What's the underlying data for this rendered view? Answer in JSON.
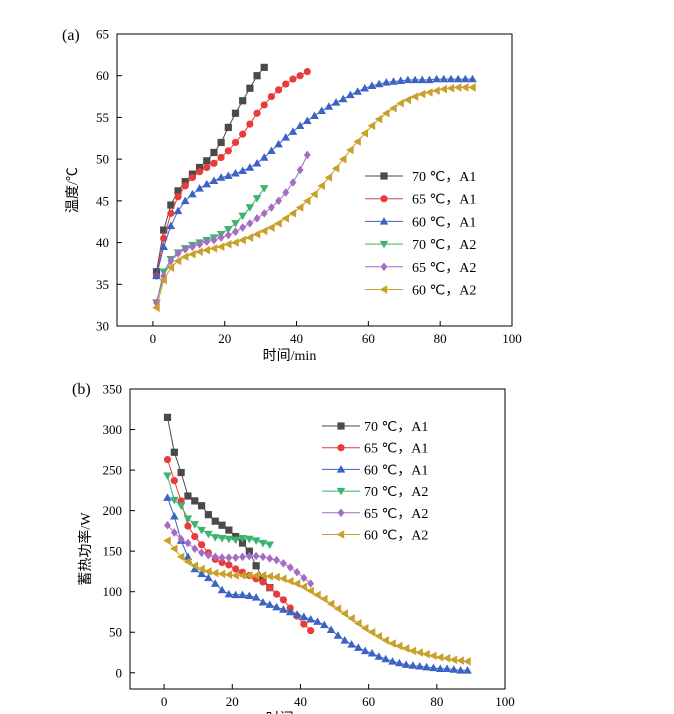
{
  "chart_data": [
    {
      "panel_label": "(a)",
      "type": "line",
      "xlabel": "时间/min",
      "ylabel": "温度/℃",
      "xlim": [
        -10,
        100
      ],
      "ylim": [
        30,
        65
      ],
      "xticks": [
        "0",
        "20",
        "40",
        "60",
        "80",
        "100"
      ],
      "yticks": [
        "30",
        "35",
        "40",
        "45",
        "50",
        "55",
        "60",
        "65"
      ],
      "legend_position": "right-middle",
      "series": [
        {
          "name": "70 ℃，A1",
          "color": "#4a4a4a",
          "marker": "square",
          "x": [
            1,
            3,
            5,
            7,
            9,
            11,
            13,
            15,
            17,
            19,
            21,
            23,
            25,
            27,
            29,
            31
          ],
          "y": [
            36.5,
            41.5,
            44.5,
            46.2,
            47.3,
            48.2,
            49.0,
            49.8,
            50.8,
            52.0,
            53.8,
            55.5,
            57.0,
            58.5,
            60.0,
            61.0
          ]
        },
        {
          "name": "65 ℃，A1",
          "color": "#e83b3b",
          "marker": "circle",
          "x": [
            1,
            3,
            5,
            7,
            9,
            11,
            13,
            15,
            17,
            19,
            21,
            23,
            25,
            27,
            29,
            31,
            33,
            35,
            37,
            39,
            41,
            43
          ],
          "y": [
            36.0,
            40.5,
            43.5,
            45.5,
            46.8,
            47.8,
            48.5,
            49.0,
            49.5,
            50.2,
            51.0,
            52.0,
            53.0,
            54.2,
            55.5,
            56.5,
            57.5,
            58.3,
            59.0,
            59.6,
            60.0,
            60.5
          ]
        },
        {
          "name": "60 ℃，A1",
          "color": "#3b63c4",
          "marker": "triangle-up",
          "x": [
            1,
            3,
            5,
            7,
            9,
            11,
            13,
            15,
            17,
            19,
            21,
            23,
            25,
            27,
            29,
            31,
            33,
            35,
            37,
            39,
            41,
            43,
            45,
            47,
            49,
            51,
            53,
            55,
            57,
            59,
            61,
            63,
            65,
            67,
            69,
            71,
            73,
            75,
            77,
            79,
            81,
            83,
            85,
            87,
            89
          ],
          "y": [
            36.0,
            39.5,
            42.0,
            43.8,
            45.0,
            45.8,
            46.5,
            47.0,
            47.4,
            47.8,
            48.0,
            48.3,
            48.6,
            49.0,
            49.5,
            50.2,
            51.0,
            51.8,
            52.6,
            53.3,
            54.0,
            54.6,
            55.2,
            55.8,
            56.3,
            56.8,
            57.2,
            57.7,
            58.1,
            58.5,
            58.8,
            59.0,
            59.2,
            59.3,
            59.4,
            59.5,
            59.5,
            59.5,
            59.5,
            59.6,
            59.6,
            59.6,
            59.6,
            59.6,
            59.6
          ]
        },
        {
          "name": "70 ℃，A2",
          "color": "#3cb371",
          "marker": "triangle-down",
          "x": [
            1,
            3,
            5,
            7,
            9,
            11,
            13,
            15,
            17,
            19,
            21,
            23,
            25,
            27,
            29,
            31
          ],
          "y": [
            32.8,
            36.5,
            38.0,
            38.8,
            39.3,
            39.7,
            40.0,
            40.3,
            40.6,
            41.0,
            41.6,
            42.3,
            43.2,
            44.2,
            45.3,
            46.5
          ]
        },
        {
          "name": "65 ℃，A2",
          "color": "#a56cc1",
          "marker": "diamond",
          "x": [
            1,
            3,
            5,
            7,
            9,
            11,
            13,
            15,
            17,
            19,
            21,
            23,
            25,
            27,
            29,
            31,
            33,
            35,
            37,
            39,
            41,
            43
          ],
          "y": [
            32.8,
            36.0,
            37.8,
            38.7,
            39.2,
            39.5,
            39.8,
            40.1,
            40.3,
            40.6,
            40.9,
            41.3,
            41.8,
            42.3,
            42.9,
            43.5,
            44.2,
            45.0,
            46.0,
            47.2,
            48.7,
            50.5
          ]
        },
        {
          "name": "60 ℃，A2",
          "color": "#c9a02a",
          "marker": "triangle-left",
          "x": [
            1,
            3,
            5,
            7,
            9,
            11,
            13,
            15,
            17,
            19,
            21,
            23,
            25,
            27,
            29,
            31,
            33,
            35,
            37,
            39,
            41,
            43,
            45,
            47,
            49,
            51,
            53,
            55,
            57,
            59,
            61,
            63,
            65,
            67,
            69,
            71,
            73,
            75,
            77,
            79,
            81,
            83,
            85,
            87,
            89
          ],
          "y": [
            32.2,
            35.5,
            37.0,
            37.8,
            38.3,
            38.6,
            38.9,
            39.1,
            39.3,
            39.5,
            39.8,
            40.0,
            40.3,
            40.6,
            41.0,
            41.4,
            41.8,
            42.3,
            42.9,
            43.5,
            44.2,
            45.0,
            45.8,
            46.8,
            47.8,
            48.9,
            50.0,
            51.1,
            52.1,
            53.1,
            54.0,
            54.8,
            55.5,
            56.1,
            56.7,
            57.1,
            57.5,
            57.8,
            58.0,
            58.2,
            58.4,
            58.5,
            58.6,
            58.6,
            58.6
          ]
        }
      ]
    },
    {
      "panel_label": "(b)",
      "type": "line",
      "xlabel": "时间/min",
      "ylabel": "蓄热功率/W",
      "xlim": [
        -10,
        100
      ],
      "ylim": [
        -20,
        350
      ],
      "xticks": [
        "0",
        "20",
        "40",
        "60",
        "80",
        "100"
      ],
      "yticks": [
        "0",
        "50",
        "100",
        "150",
        "200",
        "250",
        "300",
        "350"
      ],
      "legend_position": "top-right",
      "series": [
        {
          "name": "70 ℃，A1",
          "color": "#4a4a4a",
          "marker": "square",
          "x": [
            1,
            3,
            5,
            7,
            9,
            11,
            13,
            15,
            17,
            19,
            21,
            23,
            25,
            27,
            29,
            31
          ],
          "y": [
            315,
            272,
            247,
            218,
            212,
            206,
            195,
            187,
            182,
            176,
            168,
            160,
            150,
            132,
            116,
            105
          ]
        },
        {
          "name": "65 ℃，A1",
          "color": "#e83b3b",
          "marker": "circle",
          "x": [
            1,
            3,
            5,
            7,
            9,
            11,
            13,
            15,
            17,
            19,
            21,
            23,
            25,
            27,
            29,
            31,
            33,
            35,
            37,
            39,
            41,
            43
          ],
          "y": [
            263,
            237,
            212,
            181,
            168,
            158,
            148,
            140,
            136,
            133,
            128,
            124,
            120,
            116,
            112,
            105,
            97,
            90,
            80,
            70,
            60,
            52
          ]
        },
        {
          "name": "60 ℃，A1",
          "color": "#3b63c4",
          "marker": "triangle-up",
          "x": [
            1,
            3,
            5,
            7,
            9,
            11,
            13,
            15,
            17,
            19,
            21,
            23,
            25,
            27,
            29,
            31,
            33,
            35,
            37,
            39,
            41,
            43,
            45,
            47,
            49,
            51,
            53,
            55,
            57,
            59,
            61,
            63,
            65,
            67,
            69,
            71,
            73,
            75,
            77,
            79,
            81,
            83,
            85,
            87,
            89
          ],
          "y": [
            216,
            193,
            163,
            143,
            128,
            122,
            117,
            110,
            102,
            97,
            96,
            96,
            95,
            93,
            87,
            84,
            81,
            78,
            75,
            72,
            69,
            66,
            63,
            59,
            53,
            46,
            40,
            35,
            31,
            27,
            24,
            20,
            17,
            14,
            12,
            10,
            9,
            8,
            7,
            6,
            5,
            5,
            4,
            3,
            3
          ]
        },
        {
          "name": "70 ℃，A2",
          "color": "#3cb371",
          "marker": "triangle-down",
          "x": [
            1,
            3,
            5,
            7,
            9,
            11,
            13,
            15,
            17,
            19,
            21,
            23,
            25,
            27,
            29,
            31
          ],
          "y": [
            243,
            213,
            206,
            190,
            183,
            176,
            171,
            167,
            166,
            165,
            164,
            166,
            165,
            163,
            160,
            158
          ]
        },
        {
          "name": "65 ℃，A2",
          "color": "#a56cc1",
          "marker": "diamond",
          "x": [
            1,
            3,
            5,
            7,
            9,
            11,
            13,
            15,
            17,
            19,
            21,
            23,
            25,
            27,
            29,
            31,
            33,
            35,
            37,
            39,
            41,
            43
          ],
          "y": [
            182,
            173,
            165,
            160,
            153,
            148,
            145,
            143,
            142,
            142,
            142,
            143,
            144,
            144,
            143,
            141,
            139,
            135,
            130,
            124,
            117,
            110
          ]
        },
        {
          "name": "60 ℃，A2",
          "color": "#c9a02a",
          "marker": "triangle-left",
          "x": [
            1,
            3,
            5,
            7,
            9,
            11,
            13,
            15,
            17,
            19,
            21,
            23,
            25,
            27,
            29,
            31,
            33,
            35,
            37,
            39,
            41,
            43,
            45,
            47,
            49,
            51,
            53,
            55,
            57,
            59,
            61,
            63,
            65,
            67,
            69,
            71,
            73,
            75,
            77,
            79,
            81,
            83,
            85,
            87,
            89
          ],
          "y": [
            163,
            153,
            143,
            137,
            132,
            128,
            125,
            123,
            122,
            121,
            120,
            120,
            120,
            120,
            120,
            119,
            118,
            116,
            113,
            110,
            106,
            101,
            96,
            91,
            85,
            79,
            73,
            67,
            61,
            55,
            50,
            45,
            40,
            36,
            33,
            30,
            27,
            25,
            23,
            21,
            19,
            18,
            16,
            15,
            14
          ]
        }
      ]
    }
  ]
}
